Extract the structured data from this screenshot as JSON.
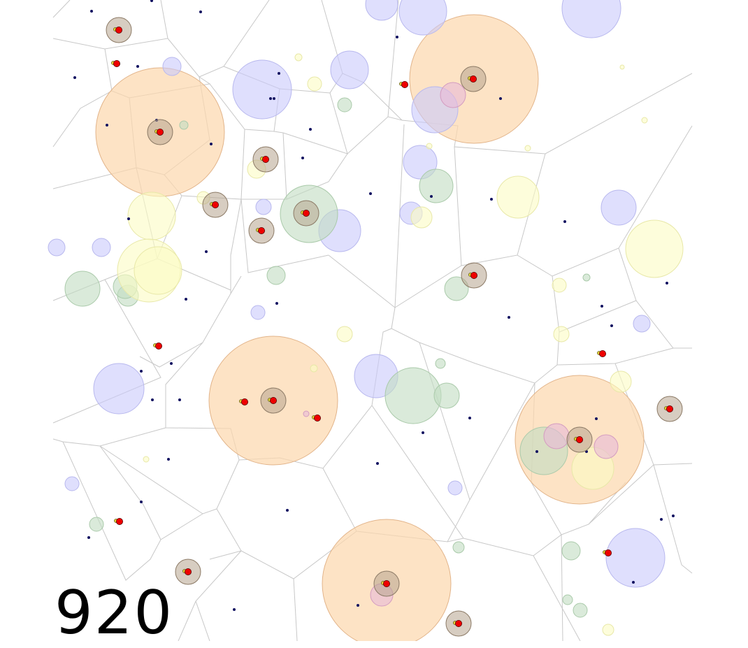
{
  "frame_counter": "920",
  "colors": {
    "background": "#ffffff",
    "voronoi_edge": "#c8c8c8",
    "orange_zone": "#fcd7ad",
    "blue_zone": "#c9c9fb",
    "green_zone": "#c2dcc2",
    "yellow_zone": "#fbfbc3",
    "pink_zone": "#e7b9d7",
    "agent_halo": "#b6a48e",
    "agent_body": "#ee0000",
    "agent_marker": "#e4d33a",
    "navy_dot": "#101060",
    "text": "#000000"
  }
}
